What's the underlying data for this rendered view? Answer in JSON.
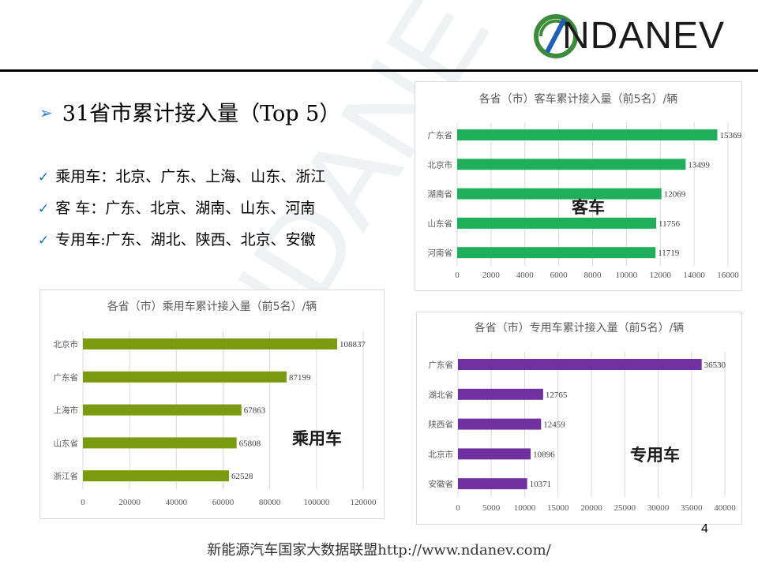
{
  "logo": {
    "text": "NDANEV",
    "icon": "ndanev-logo-icon"
  },
  "watermark": {
    "text": "NDANEV"
  },
  "headline": {
    "arrow": "➢",
    "text": "31省市累计接入量（Top 5）"
  },
  "bullets": [
    {
      "check": "✓",
      "text": "乘用车：北京、广东、上海、山东、浙江"
    },
    {
      "check": "✓",
      "text": "客  车：广东、北京、湖南、山东、河南"
    },
    {
      "check": "✓",
      "text": "专用车:广东、湖北、陕西、北京、安徽"
    }
  ],
  "overlays": {
    "bus": "客车",
    "passenger": "乘用车",
    "special": "专用车"
  },
  "page_number": "4",
  "footer": "新能源汽车国家大数据联盟http://www.ndanev.com/",
  "colors": {
    "bus": "#1fae5a",
    "passenger": "#7a9a12",
    "special": "#7030a0",
    "accent_blue": "#2e7fd6"
  },
  "chart_data": [
    {
      "type": "bar",
      "orientation": "horizontal",
      "title": "各省（市）客车累计接入量（前5名）/辆",
      "categories": [
        "广东省",
        "北京市",
        "湖南省",
        "山东省",
        "河南省"
      ],
      "values": [
        15369,
        13499,
        12069,
        11756,
        11719
      ],
      "xlim": [
        0,
        16000
      ],
      "ticks": [
        0,
        2000,
        4000,
        6000,
        8000,
        10000,
        12000,
        14000,
        16000
      ],
      "grid": true
    },
    {
      "type": "bar",
      "orientation": "horizontal",
      "title": "各省（市）乘用车累计接入量（前5名）/辆",
      "categories": [
        "北京市",
        "广东省",
        "上海市",
        "山东省",
        "浙江省"
      ],
      "values": [
        108837,
        87199,
        67863,
        65808,
        62528
      ],
      "xlim": [
        0,
        120000
      ],
      "ticks": [
        0,
        20000,
        40000,
        60000,
        80000,
        100000,
        120000
      ],
      "grid": true
    },
    {
      "type": "bar",
      "orientation": "horizontal",
      "title": "各省（市）专用车累计接入量（前5名）/辆",
      "categories": [
        "广东省",
        "湖北省",
        "陕西省",
        "北京市",
        "安徽省"
      ],
      "values": [
        36530,
        12765,
        12459,
        10896,
        10371
      ],
      "xlim": [
        0,
        40000
      ],
      "ticks": [
        0,
        5000,
        10000,
        15000,
        20000,
        25000,
        30000,
        35000,
        40000
      ],
      "grid": true
    }
  ]
}
